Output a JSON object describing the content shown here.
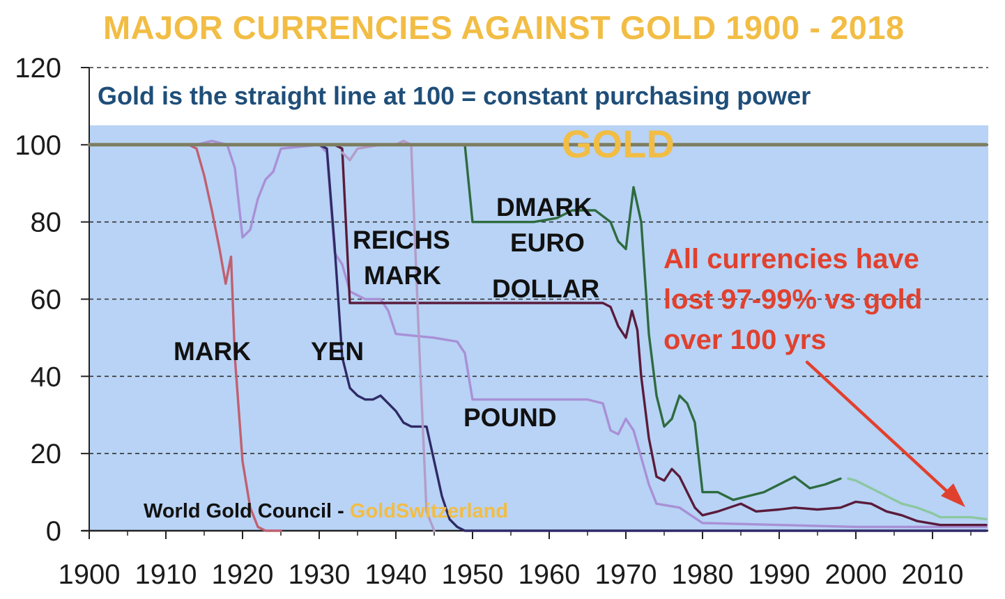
{
  "chart_data": {
    "type": "line",
    "title": "MAJOR CURRENCIES AGAINST GOLD 1900 - 2018",
    "subtitle": "Gold is the straight line at 100 = constant purchasing power",
    "xlabel": "",
    "ylabel": "",
    "xlim": [
      1900,
      2017
    ],
    "ylim": [
      0,
      120
    ],
    "x_ticks": [
      1900,
      1910,
      1920,
      1930,
      1940,
      1950,
      1960,
      1970,
      1980,
      1990,
      2000,
      2010
    ],
    "y_ticks": [
      0,
      20,
      40,
      60,
      80,
      100,
      120
    ],
    "grid": "horizontal dashed",
    "plot_background": "#b8d3f5",
    "series": [
      {
        "key": "gold",
        "color": "#7d7d62",
        "label": "GOLD",
        "points": [
          [
            1900,
            100
          ],
          [
            2017,
            100
          ]
        ]
      },
      {
        "key": "mark",
        "color": "#c06070",
        "label": "MARK",
        "points": [
          [
            1900,
            100
          ],
          [
            1913,
            100
          ],
          [
            1914,
            99
          ],
          [
            1915,
            92
          ],
          [
            1916,
            83
          ],
          [
            1917,
            73
          ],
          [
            1917.8,
            64
          ],
          [
            1918.5,
            71
          ],
          [
            1919,
            45
          ],
          [
            1920,
            18
          ],
          [
            1921,
            6
          ],
          [
            1922,
            1
          ],
          [
            1923,
            0
          ],
          [
            1925,
            0
          ]
        ]
      },
      {
        "key": "pound",
        "color": "#a890d6",
        "label": "POUND",
        "points": [
          [
            1900,
            100
          ],
          [
            1914,
            100
          ],
          [
            1916,
            101
          ],
          [
            1918,
            100
          ],
          [
            1919,
            94
          ],
          [
            1920,
            76
          ],
          [
            1921,
            78
          ],
          [
            1922,
            86
          ],
          [
            1923,
            91
          ],
          [
            1924,
            93
          ],
          [
            1925,
            99
          ],
          [
            1930,
            100
          ],
          [
            1931,
            98
          ],
          [
            1932,
            72
          ],
          [
            1933,
            69
          ],
          [
            1934,
            62
          ],
          [
            1936,
            60
          ],
          [
            1938,
            60
          ],
          [
            1939,
            57
          ],
          [
            1940,
            51
          ],
          [
            1945,
            50
          ],
          [
            1948,
            49
          ],
          [
            1949,
            46
          ],
          [
            1950,
            34
          ],
          [
            1965,
            34
          ],
          [
            1967,
            33
          ],
          [
            1968,
            26
          ],
          [
            1969,
            25
          ],
          [
            1970,
            29
          ],
          [
            1971,
            26
          ],
          [
            1972,
            19
          ],
          [
            1973,
            12
          ],
          [
            1974,
            7
          ],
          [
            1977,
            6
          ],
          [
            1980,
            2
          ],
          [
            1990,
            1.5
          ],
          [
            2000,
            1
          ],
          [
            2017,
            1
          ]
        ]
      },
      {
        "key": "dollar",
        "color": "#5a1b3b",
        "label": "DOLLAR",
        "points": [
          [
            1931,
            100
          ],
          [
            1932,
            100
          ],
          [
            1933,
            99
          ],
          [
            1934,
            59
          ],
          [
            1936,
            59
          ],
          [
            1950,
            59
          ],
          [
            1967,
            59
          ],
          [
            1968,
            58
          ],
          [
            1969,
            53
          ],
          [
            1970,
            50
          ],
          [
            1970.8,
            57
          ],
          [
            1971.5,
            52
          ],
          [
            1972,
            40
          ],
          [
            1973,
            24
          ],
          [
            1974,
            14
          ],
          [
            1975,
            13
          ],
          [
            1976,
            16
          ],
          [
            1977,
            14
          ],
          [
            1978,
            10
          ],
          [
            1979,
            6
          ],
          [
            1980,
            4
          ],
          [
            1982,
            5
          ],
          [
            1985,
            7
          ],
          [
            1987,
            5
          ],
          [
            1990,
            5.5
          ],
          [
            1992,
            6
          ],
          [
            1995,
            5.5
          ],
          [
            1998,
            6
          ],
          [
            2000,
            7.5
          ],
          [
            2002,
            7
          ],
          [
            2004,
            5
          ],
          [
            2006,
            4
          ],
          [
            2008,
            2.5
          ],
          [
            2011,
            1.5
          ],
          [
            2013,
            1.5
          ],
          [
            2017,
            1.5
          ]
        ]
      },
      {
        "key": "yen",
        "color": "#2f2a66",
        "label": "YEN",
        "points": [
          [
            1929,
            100
          ],
          [
            1930,
            100
          ],
          [
            1931,
            99
          ],
          [
            1932,
            74
          ],
          [
            1933,
            45
          ],
          [
            1934,
            37
          ],
          [
            1935,
            35
          ],
          [
            1936,
            34
          ],
          [
            1937,
            34
          ],
          [
            1938,
            35
          ],
          [
            1939,
            33
          ],
          [
            1940,
            31
          ],
          [
            1941,
            28
          ],
          [
            1942,
            27
          ],
          [
            1944,
            27
          ],
          [
            1945,
            18
          ],
          [
            1946,
            9
          ],
          [
            1947,
            3
          ],
          [
            1948,
            1
          ],
          [
            1949,
            0
          ],
          [
            2017,
            0
          ]
        ]
      },
      {
        "key": "reichsmark",
        "color": "#b49cc8",
        "label": "REICHS MARK",
        "points": [
          [
            1933,
            98
          ],
          [
            1934,
            96
          ],
          [
            1935,
            99
          ],
          [
            1938,
            100
          ],
          [
            1940,
            100
          ],
          [
            1941,
            101
          ],
          [
            1942,
            100
          ],
          [
            1943,
            50
          ],
          [
            1944,
            5
          ],
          [
            1945,
            0
          ]
        ]
      },
      {
        "key": "dmark",
        "color": "#2e6b40",
        "label": "DMARK",
        "points": [
          [
            1949,
            100
          ],
          [
            1950,
            80
          ],
          [
            1958,
            80
          ],
          [
            1961,
            81
          ],
          [
            1963,
            83
          ],
          [
            1966,
            83
          ],
          [
            1968,
            80
          ],
          [
            1969,
            75
          ],
          [
            1970,
            73
          ],
          [
            1971,
            89
          ],
          [
            1972,
            80
          ],
          [
            1973,
            51
          ],
          [
            1974,
            35
          ],
          [
            1975,
            27
          ],
          [
            1976,
            29
          ],
          [
            1977,
            35
          ],
          [
            1978,
            33
          ],
          [
            1979,
            28
          ],
          [
            1980,
            10
          ],
          [
            1982,
            10
          ],
          [
            1984,
            8
          ],
          [
            1986,
            9
          ],
          [
            1988,
            10
          ],
          [
            1990,
            12
          ],
          [
            1992,
            14
          ],
          [
            1994,
            11
          ],
          [
            1996,
            12
          ],
          [
            1998,
            13.5
          ]
        ]
      },
      {
        "key": "euro",
        "color": "#8cc7a0",
        "label": "EURO",
        "points": [
          [
            1999,
            13.5
          ],
          [
            2000,
            13
          ],
          [
            2002,
            11
          ],
          [
            2004,
            9
          ],
          [
            2006,
            7
          ],
          [
            2008,
            6
          ],
          [
            2010,
            4.5
          ],
          [
            2011,
            3.5
          ],
          [
            2013,
            3.5
          ],
          [
            2015,
            3.5
          ],
          [
            2017,
            3
          ]
        ]
      }
    ],
    "labels": {
      "gold": "GOLD",
      "dmark": "DMARK",
      "euro": "EURO",
      "reichs": "REICHS",
      "mark_under_reichs": "MARK",
      "dollar": "DOLLAR",
      "mark": "MARK",
      "yen": "YEN",
      "pound": "POUND"
    },
    "annotation": {
      "lines": [
        "All currencies have",
        "lost 97-99% vs gold",
        "over 100 yrs"
      ],
      "arrow_color": "#e0412f"
    },
    "source_prefix": "World Gold Council - ",
    "source_brand": "GoldSwitzerland"
  }
}
